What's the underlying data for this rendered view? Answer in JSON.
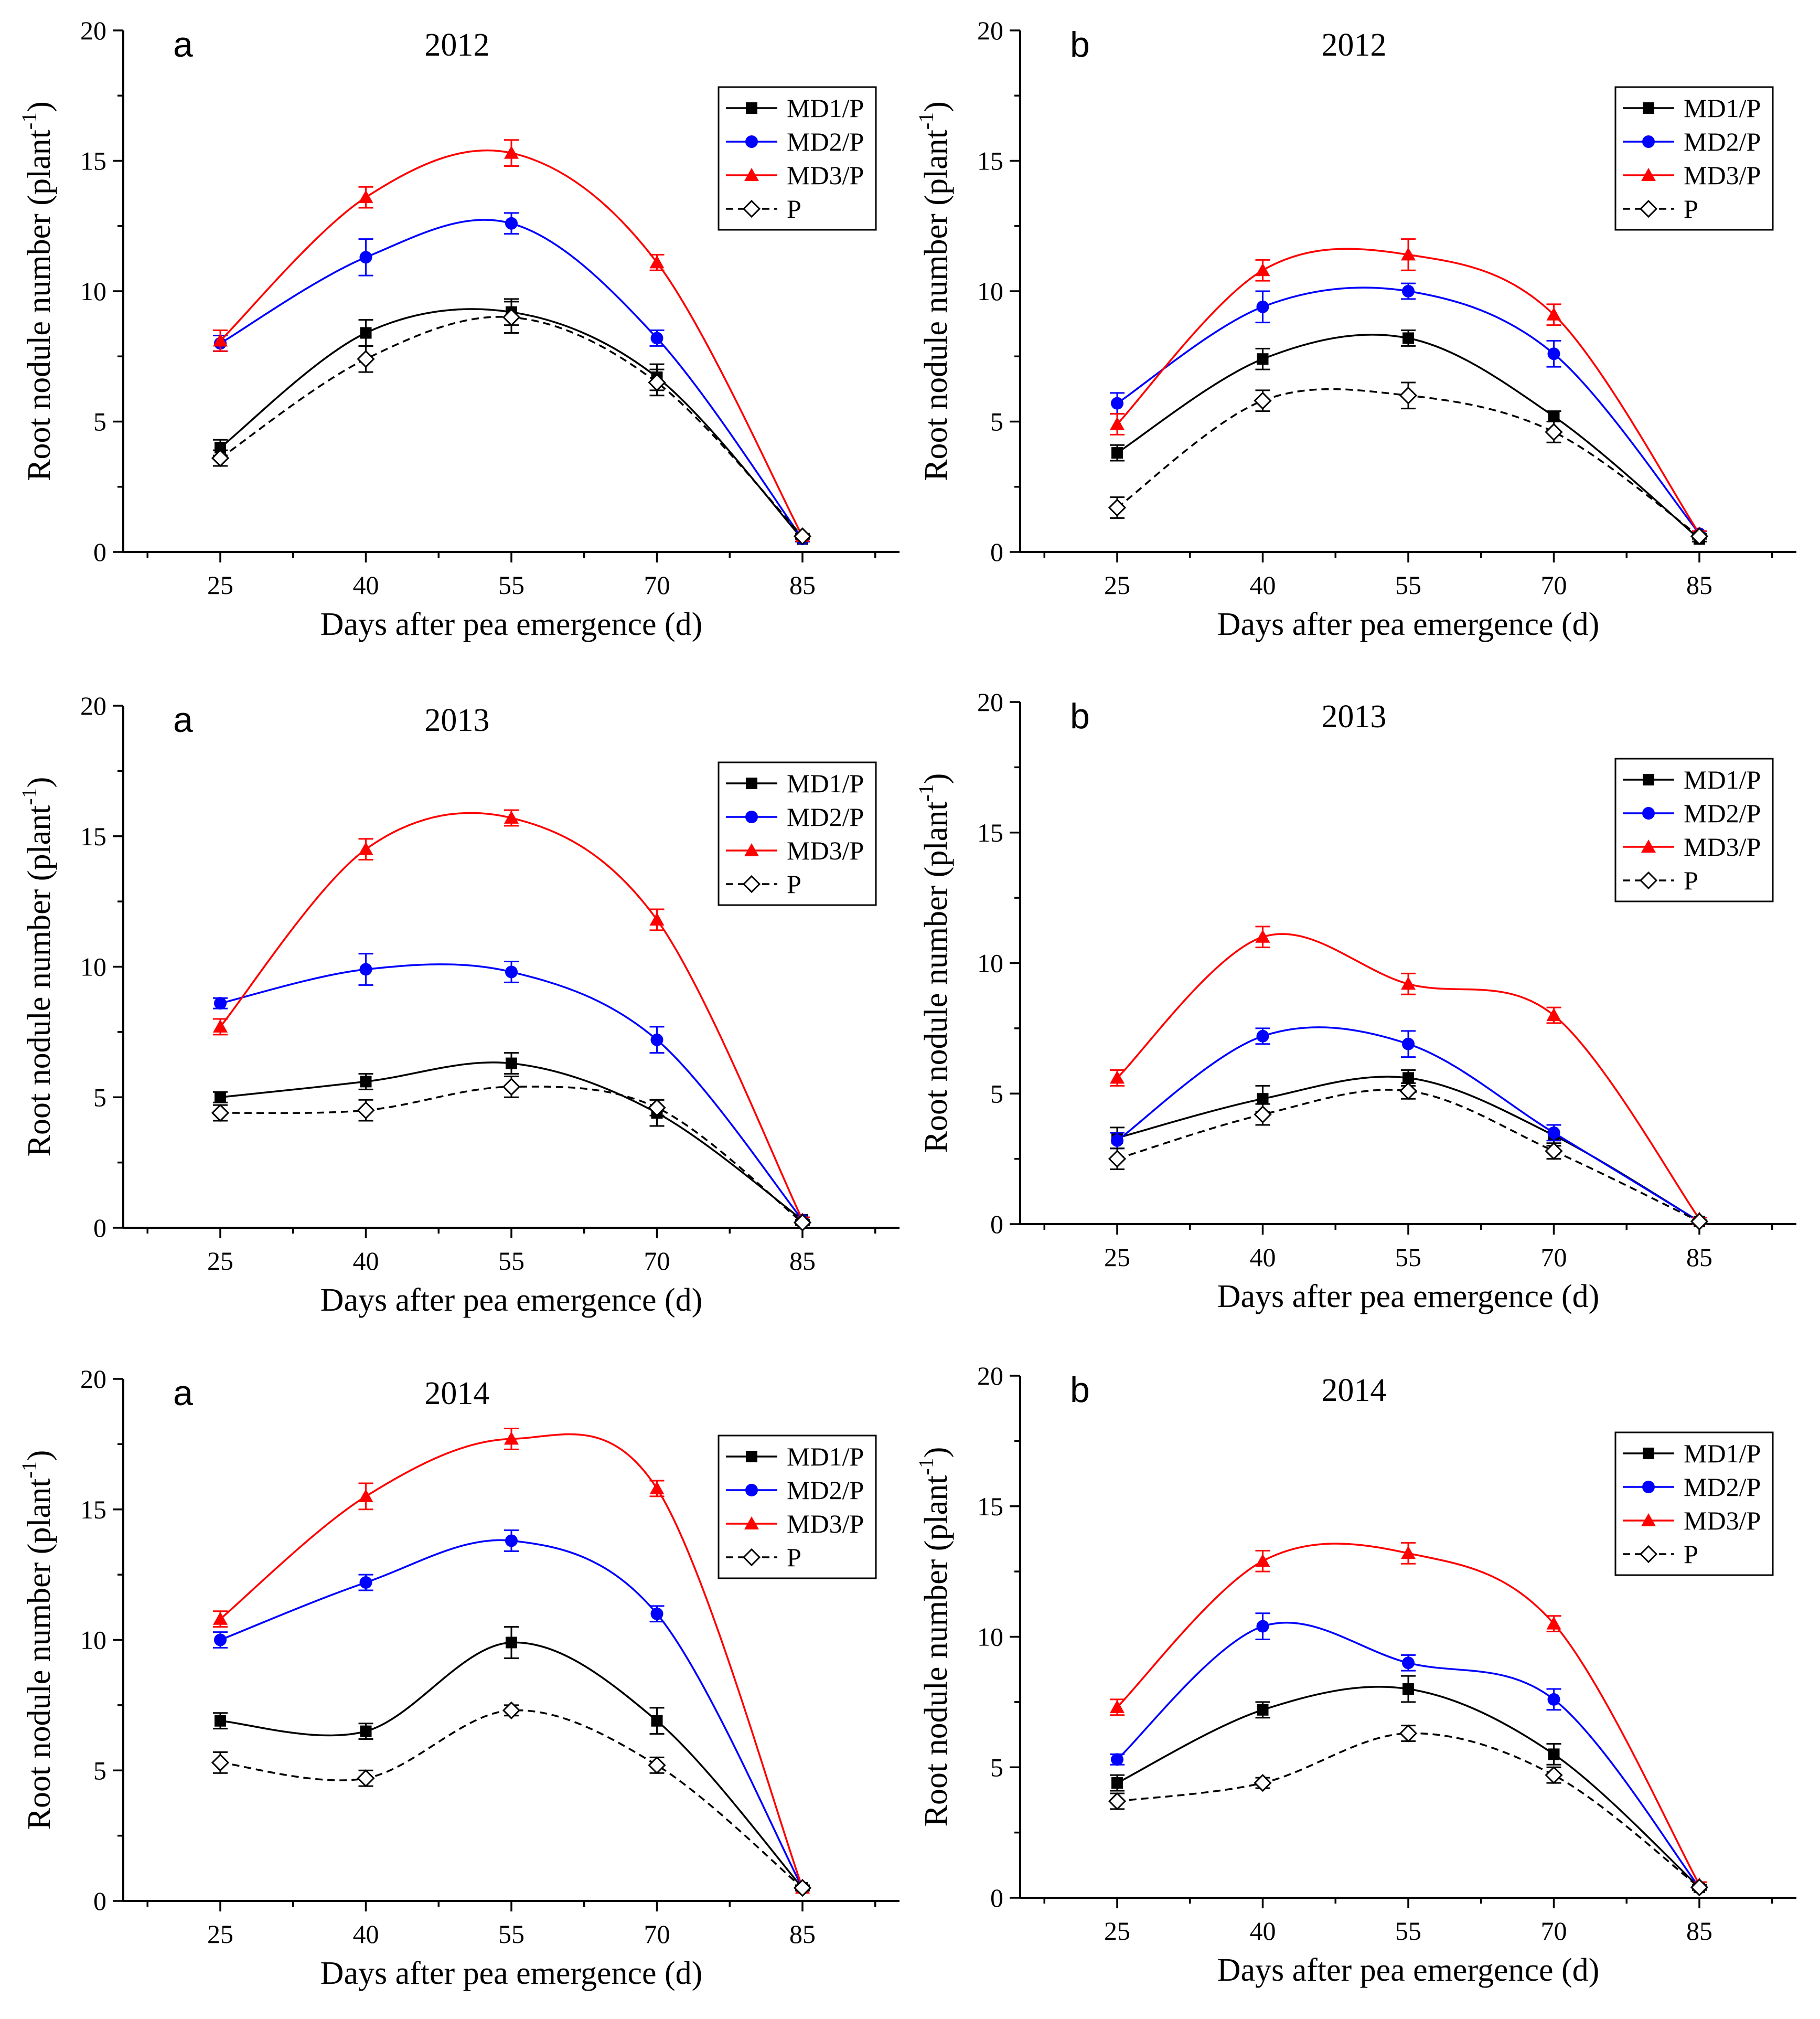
{
  "chart_data": [
    {
      "type": "line",
      "panel_label": "a",
      "title": "2012",
      "xlabel": "Days after pea emergence (d)",
      "ylabel_main": "Root nodule number (plant",
      "ylabel_sup": "-1",
      "ylabel_close": ")",
      "x": [
        25,
        40,
        55,
        70,
        85
      ],
      "xticks": [
        "25",
        "40",
        "55",
        "70",
        "85"
      ],
      "ylim": [
        0,
        20
      ],
      "yticks": [
        "0",
        "5",
        "10",
        "15",
        "20"
      ],
      "legend_position": "top-right",
      "series": [
        {
          "name": "MD1/P",
          "values": [
            4.0,
            8.4,
            9.2,
            6.7,
            0.5
          ],
          "errors": [
            0.3,
            0.5,
            0.5,
            0.5,
            0.1
          ]
        },
        {
          "name": "MD2/P",
          "values": [
            8.0,
            11.3,
            12.6,
            8.2,
            0.5
          ],
          "errors": [
            0.3,
            0.7,
            0.4,
            0.3,
            0.1
          ]
        },
        {
          "name": "MD3/P",
          "values": [
            8.1,
            13.6,
            15.3,
            11.1,
            0.6
          ],
          "errors": [
            0.4,
            0.4,
            0.5,
            0.3,
            0.1
          ]
        },
        {
          "name": "P",
          "values": [
            3.6,
            7.4,
            9.0,
            6.5,
            0.6
          ],
          "errors": [
            0.3,
            0.5,
            0.6,
            0.5,
            0.1
          ]
        }
      ]
    },
    {
      "type": "line",
      "panel_label": "b",
      "title": "2012",
      "xlabel": "Days after pea emergence (d)",
      "ylabel_main": "Root nodule number (plant",
      "ylabel_sup": "-1",
      "ylabel_close": ")",
      "x": [
        25,
        40,
        55,
        70,
        85
      ],
      "xticks": [
        "25",
        "40",
        "55",
        "70",
        "85"
      ],
      "ylim": [
        0,
        20
      ],
      "yticks": [
        "0",
        "5",
        "10",
        "15",
        "20"
      ],
      "legend_position": "top-right",
      "series": [
        {
          "name": "MD1/P",
          "values": [
            3.8,
            7.4,
            8.2,
            5.2,
            0.5
          ],
          "errors": [
            0.3,
            0.4,
            0.3,
            0.2,
            0.1
          ]
        },
        {
          "name": "MD2/P",
          "values": [
            5.7,
            9.4,
            10.0,
            7.6,
            0.7
          ],
          "errors": [
            0.4,
            0.6,
            0.3,
            0.5,
            0.1
          ]
        },
        {
          "name": "MD3/P",
          "values": [
            4.9,
            10.8,
            11.4,
            9.1,
            0.7
          ],
          "errors": [
            0.4,
            0.4,
            0.6,
            0.4,
            0.1
          ]
        },
        {
          "name": "P",
          "values": [
            1.7,
            5.8,
            6.0,
            4.6,
            0.6
          ],
          "errors": [
            0.4,
            0.4,
            0.5,
            0.4,
            0.1
          ]
        }
      ]
    },
    {
      "type": "line",
      "panel_label": "a",
      "title": "2013",
      "xlabel": "Days after pea emergence (d)",
      "ylabel_main": "Root nodule number (plant",
      "ylabel_sup": "-1",
      "ylabel_close": ")",
      "x": [
        25,
        40,
        55,
        70,
        85
      ],
      "xticks": [
        "25",
        "40",
        "55",
        "70",
        "85"
      ],
      "ylim": [
        0,
        20
      ],
      "yticks": [
        "0",
        "5",
        "10",
        "15",
        "20"
      ],
      "legend_position": "top-right",
      "series": [
        {
          "name": "MD1/P",
          "values": [
            5.0,
            5.6,
            6.3,
            4.4,
            0.3
          ],
          "errors": [
            0.2,
            0.3,
            0.4,
            0.5,
            0.1
          ]
        },
        {
          "name": "MD2/P",
          "values": [
            8.6,
            9.9,
            9.8,
            7.2,
            0.3
          ],
          "errors": [
            0.2,
            0.6,
            0.4,
            0.5,
            0.1
          ]
        },
        {
          "name": "MD3/P",
          "values": [
            7.7,
            14.5,
            15.7,
            11.8,
            0.3
          ],
          "errors": [
            0.3,
            0.4,
            0.3,
            0.4,
            0.1
          ]
        },
        {
          "name": "P",
          "values": [
            4.4,
            4.5,
            5.4,
            4.6,
            0.2
          ],
          "errors": [
            0.3,
            0.4,
            0.4,
            0.3,
            0.1
          ]
        }
      ]
    },
    {
      "type": "line",
      "panel_label": "b",
      "title": "2013",
      "xlabel": "Days after pea emergence (d)",
      "ylabel_main": "Root nodule number (plant",
      "ylabel_sup": "-1",
      "ylabel_close": ")",
      "x": [
        25,
        40,
        55,
        70,
        85
      ],
      "xticks": [
        "25",
        "40",
        "55",
        "70",
        "85"
      ],
      "ylim": [
        0,
        20
      ],
      "yticks": [
        "0",
        "5",
        "10",
        "15",
        "20"
      ],
      "legend_position": "top-right",
      "series": [
        {
          "name": "MD1/P",
          "values": [
            3.3,
            4.8,
            5.6,
            3.4,
            0.1
          ],
          "errors": [
            0.4,
            0.5,
            0.3,
            0.4,
            0.05
          ]
        },
        {
          "name": "MD2/P",
          "values": [
            3.2,
            7.2,
            6.9,
            3.5,
            0.1
          ],
          "errors": [
            0.3,
            0.3,
            0.5,
            0.3,
            0.05
          ]
        },
        {
          "name": "MD3/P",
          "values": [
            5.6,
            11.0,
            9.2,
            8.0,
            0.2
          ],
          "errors": [
            0.3,
            0.4,
            0.4,
            0.3,
            0.05
          ]
        },
        {
          "name": "P",
          "values": [
            2.5,
            4.2,
            5.1,
            2.8,
            0.1
          ],
          "errors": [
            0.4,
            0.4,
            0.3,
            0.3,
            0.05
          ]
        }
      ]
    },
    {
      "type": "line",
      "panel_label": "a",
      "title": "2014",
      "xlabel": "Days after pea emergence (d)",
      "ylabel_main": "Root nodule number (plant",
      "ylabel_sup": "-1",
      "ylabel_close": ")",
      "x": [
        25,
        40,
        55,
        70,
        85
      ],
      "xticks": [
        "25",
        "40",
        "55",
        "70",
        "85"
      ],
      "ylim": [
        0,
        20
      ],
      "yticks": [
        "0",
        "5",
        "10",
        "15",
        "20"
      ],
      "legend_position": "top-right",
      "series": [
        {
          "name": "MD1/P",
          "values": [
            6.9,
            6.5,
            9.9,
            6.9,
            0.5
          ],
          "errors": [
            0.3,
            0.3,
            0.6,
            0.5,
            0.1
          ]
        },
        {
          "name": "MD2/P",
          "values": [
            10.0,
            12.2,
            13.8,
            11.0,
            0.5
          ],
          "errors": [
            0.3,
            0.3,
            0.4,
            0.3,
            0.1
          ]
        },
        {
          "name": "MD3/P",
          "values": [
            10.8,
            15.5,
            17.7,
            15.8,
            0.5
          ],
          "errors": [
            0.3,
            0.5,
            0.4,
            0.3,
            0.1
          ]
        },
        {
          "name": "P",
          "values": [
            5.3,
            4.7,
            7.3,
            5.2,
            0.5
          ],
          "errors": [
            0.4,
            0.3,
            0.2,
            0.3,
            0.1
          ]
        }
      ]
    },
    {
      "type": "line",
      "panel_label": "b",
      "title": "2014",
      "xlabel": "Days after pea emergence (d)",
      "ylabel_main": "Root nodule number (plant",
      "ylabel_sup": "-1",
      "ylabel_close": ")",
      "x": [
        25,
        40,
        55,
        70,
        85
      ],
      "xticks": [
        "25",
        "40",
        "55",
        "70",
        "85"
      ],
      "ylim": [
        0,
        20
      ],
      "yticks": [
        "0",
        "5",
        "10",
        "15",
        "20"
      ],
      "legend_position": "top-right",
      "series": [
        {
          "name": "MD1/P",
          "values": [
            4.4,
            7.2,
            8.0,
            5.5,
            0.4
          ],
          "errors": [
            0.3,
            0.3,
            0.5,
            0.4,
            0.1
          ]
        },
        {
          "name": "MD2/P",
          "values": [
            5.3,
            10.4,
            9.0,
            7.6,
            0.4
          ],
          "errors": [
            0.2,
            0.5,
            0.3,
            0.4,
            0.1
          ]
        },
        {
          "name": "MD3/P",
          "values": [
            7.3,
            12.9,
            13.2,
            10.5,
            0.5
          ],
          "errors": [
            0.3,
            0.4,
            0.4,
            0.3,
            0.1
          ]
        },
        {
          "name": "P",
          "values": [
            3.7,
            4.4,
            6.3,
            4.7,
            0.4
          ],
          "errors": [
            0.3,
            0.2,
            0.3,
            0.3,
            0.1
          ]
        }
      ]
    }
  ],
  "series_styles": {
    "MD1/P": {
      "color": "#000000",
      "marker": "square",
      "dashed": false
    },
    "MD2/P": {
      "color": "#0000ff",
      "marker": "circle",
      "dashed": false
    },
    "MD3/P": {
      "color": "#ff0000",
      "marker": "triangle",
      "dashed": false
    },
    "P": {
      "color": "#000000",
      "marker": "open-diamond",
      "dashed": true
    }
  }
}
